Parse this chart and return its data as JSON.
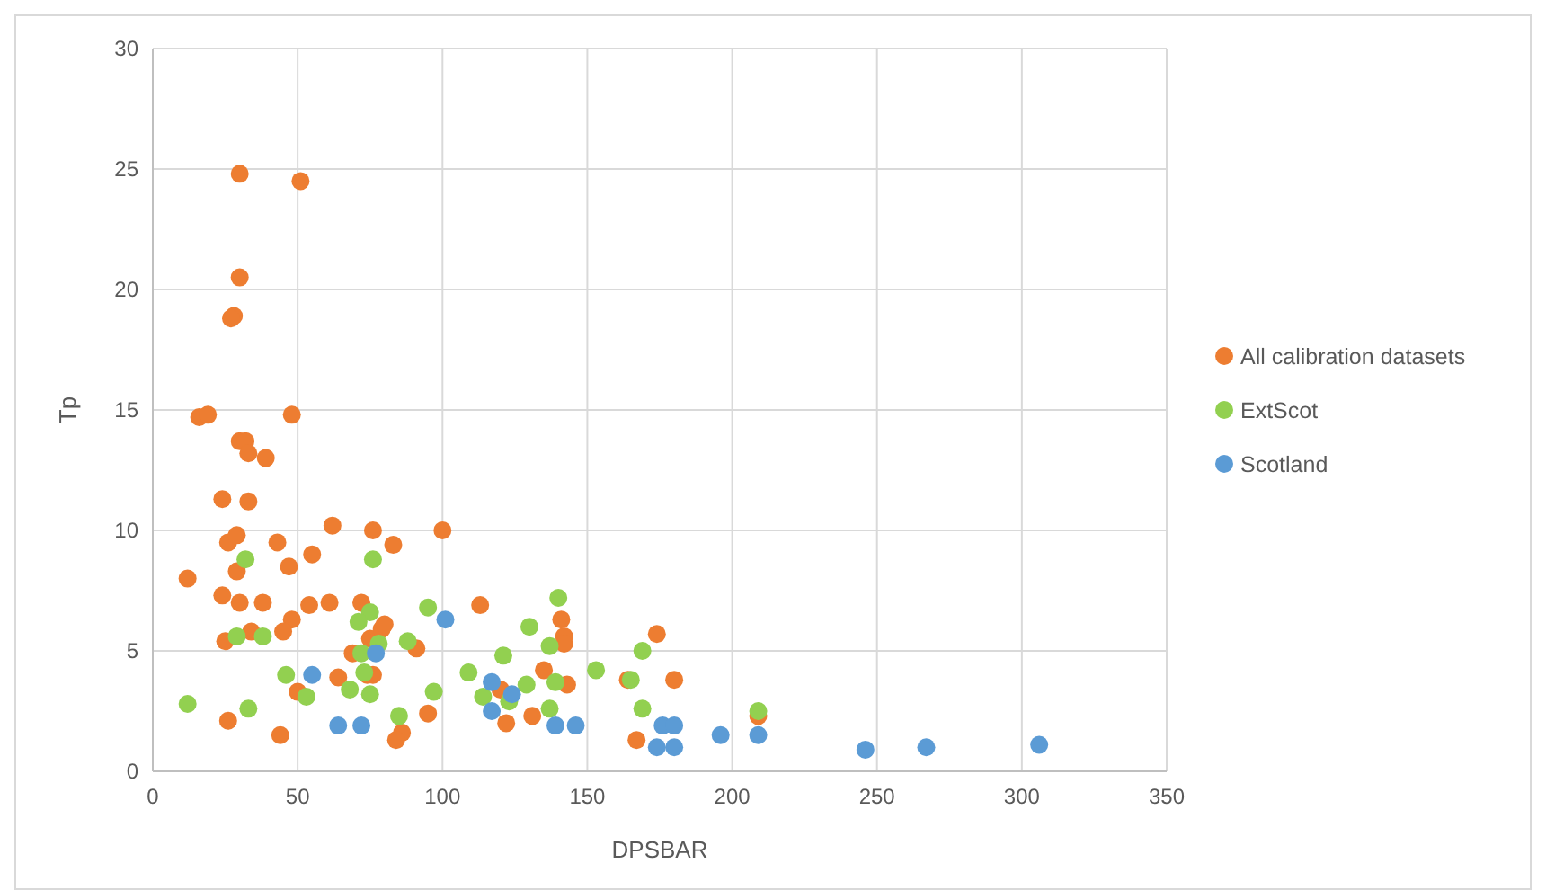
{
  "chart_data": {
    "type": "scatter",
    "xlabel": "DPSBAR",
    "ylabel": "Tp",
    "xlim": [
      0,
      350
    ],
    "ylim": [
      0,
      30
    ],
    "xticks": [
      0,
      50,
      100,
      150,
      200,
      250,
      300,
      350
    ],
    "yticks": [
      0,
      5,
      10,
      15,
      20,
      25,
      30
    ],
    "grid": true,
    "legend": "right",
    "marker": "circle",
    "series": [
      {
        "name": "All calibration datasets",
        "color": "#ed7d31",
        "x": [
          30,
          51,
          30,
          28,
          27,
          16,
          19,
          48,
          30,
          32,
          33,
          39,
          24,
          33,
          62,
          76,
          100,
          26,
          29,
          43,
          83,
          55,
          12,
          29,
          47,
          24,
          30,
          38,
          54,
          61,
          72,
          113,
          48,
          45,
          25,
          34,
          69,
          75,
          79,
          80,
          91,
          141,
          142,
          142,
          174,
          135,
          143,
          164,
          180,
          50,
          64,
          74,
          76,
          120,
          26,
          44,
          86,
          84,
          95,
          122,
          131,
          167,
          209
        ],
        "values": [
          24.8,
          24.5,
          20.5,
          18.9,
          18.8,
          14.7,
          14.8,
          14.8,
          13.7,
          13.7,
          13.2,
          13.0,
          11.3,
          11.2,
          10.2,
          10.0,
          10.0,
          9.5,
          9.8,
          9.5,
          9.4,
          9.0,
          8.0,
          8.3,
          8.5,
          7.3,
          7.0,
          7.0,
          6.9,
          7.0,
          7.0,
          6.9,
          6.3,
          5.8,
          5.4,
          5.8,
          4.9,
          5.5,
          5.9,
          6.1,
          5.1,
          6.3,
          5.6,
          5.3,
          5.7,
          4.2,
          3.6,
          3.8,
          3.8,
          3.3,
          3.9,
          4.0,
          4.0,
          3.4,
          2.1,
          1.5,
          1.6,
          1.3,
          2.4,
          2.0,
          2.3,
          1.3,
          2.3
        ]
      },
      {
        "name": "ExtScot",
        "color": "#92d050",
        "x": [
          12,
          32,
          29,
          38,
          33,
          53,
          46,
          76,
          75,
          71,
          95,
          78,
          88,
          72,
          73,
          68,
          75,
          97,
          85,
          109,
          121,
          114,
          123,
          129,
          130,
          140,
          137,
          139,
          137,
          153,
          165,
          169,
          169,
          209
        ],
        "values": [
          2.8,
          8.8,
          5.6,
          5.6,
          2.6,
          3.1,
          4.0,
          8.8,
          6.6,
          6.2,
          6.8,
          5.3,
          5.4,
          4.9,
          4.1,
          3.4,
          3.2,
          3.3,
          2.3,
          4.1,
          4.8,
          3.1,
          2.9,
          3.6,
          6.0,
          7.2,
          5.2,
          3.7,
          2.6,
          4.2,
          3.8,
          5.0,
          2.6,
          2.5
        ]
      },
      {
        "name": "Scotland",
        "color": "#5b9bd5",
        "x": [
          55,
          64,
          72,
          77,
          101,
          117,
          124,
          117,
          139,
          146,
          176,
          180,
          174,
          180,
          196,
          209,
          246,
          267,
          306
        ],
        "values": [
          4.0,
          1.9,
          1.9,
          4.9,
          6.3,
          3.7,
          3.2,
          2.5,
          1.9,
          1.9,
          1.9,
          1.9,
          1.0,
          1.0,
          1.5,
          1.5,
          0.9,
          1.0,
          1.1
        ]
      }
    ]
  }
}
